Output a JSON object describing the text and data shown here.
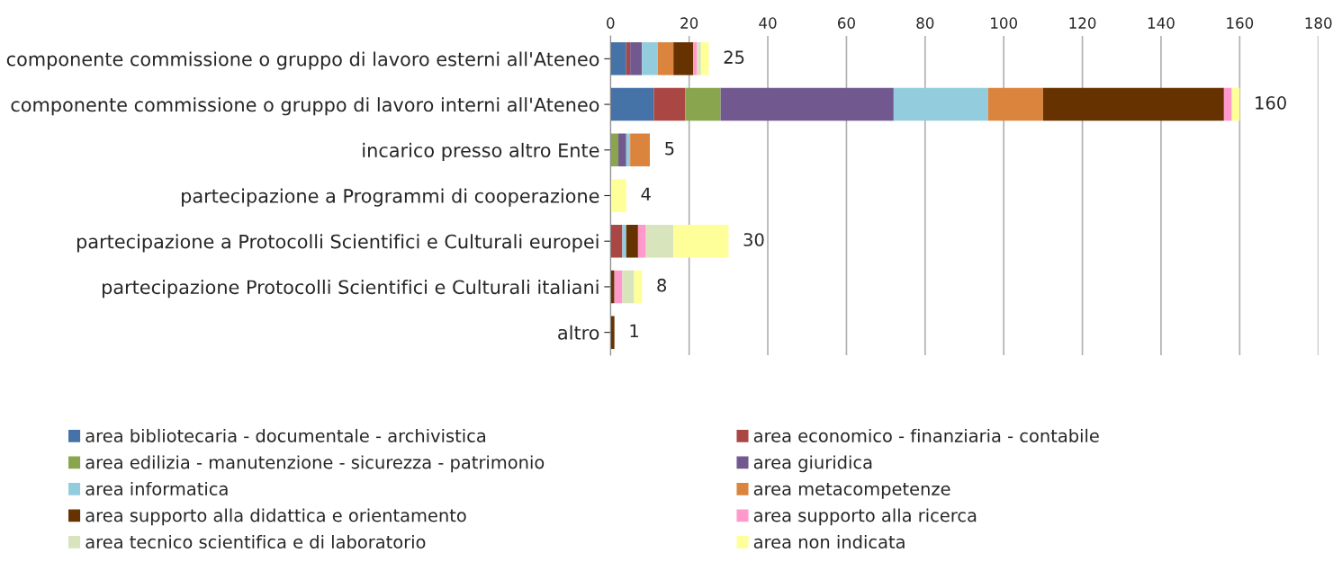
{
  "chart_data": {
    "type": "bar",
    "orientation": "horizontal",
    "stacked": true,
    "categories": [
      "componente commissione o gruppo di lavoro esterni all'Ateneo",
      "componente commissione o gruppo di lavoro interni all'Ateneo",
      "incarico presso altro Ente",
      "partecipazione a Programmi di cooperazione",
      "partecipazione a Protocolli Scientifici e Culturali europei",
      "partecipazione Protocolli Scientifici e Culturali italiani",
      "altro"
    ],
    "series": [
      {
        "name": "area bibliotecaria - documentale - archivistica",
        "color": "#4572a7",
        "values": [
          4,
          11,
          0,
          0,
          0,
          0,
          0
        ]
      },
      {
        "name": "area economico - finanziaria - contabile",
        "color": "#aa4643",
        "values": [
          1,
          8,
          0,
          0,
          3,
          0,
          0
        ]
      },
      {
        "name": "area edilizia - manutenzione - sicurezza - patrimonio",
        "color": "#89a54e",
        "values": [
          0,
          9,
          2,
          0,
          0,
          0,
          0
        ]
      },
      {
        "name": "area giuridica",
        "color": "#71588f",
        "values": [
          3,
          44,
          2,
          0,
          0,
          0,
          0
        ]
      },
      {
        "name": "area informatica",
        "color": "#93cddd",
        "values": [
          4,
          24,
          1,
          0,
          1,
          0,
          0
        ]
      },
      {
        "name": "area metacompetenze",
        "color": "#db843d",
        "values": [
          4,
          14,
          5,
          0,
          0,
          0,
          0
        ]
      },
      {
        "name": "area supporto alla didattica e orientamento",
        "color": "#663300",
        "values": [
          5,
          46,
          0,
          0,
          3,
          1,
          1
        ]
      },
      {
        "name": "area supporto alla ricerca",
        "color": "#ff99cc",
        "values": [
          1,
          2,
          0,
          0,
          2,
          2,
          0
        ]
      },
      {
        "name": "area tecnico scientifica e di laboratorio",
        "color": "#d8e4bc",
        "values": [
          1,
          0,
          0,
          0,
          7,
          3,
          0
        ]
      },
      {
        "name": "area non indicata",
        "color": "#ffff99",
        "values": [
          2,
          2,
          0,
          4,
          14,
          2,
          0
        ]
      }
    ],
    "totals": [
      "25",
      "160",
      "5",
      "4",
      "30",
      "8",
      "1"
    ],
    "xlim": [
      0,
      180
    ],
    "xticks": [
      0,
      20,
      40,
      60,
      80,
      100,
      120,
      140,
      160,
      180
    ],
    "grid": "x",
    "legend": "bottom"
  }
}
